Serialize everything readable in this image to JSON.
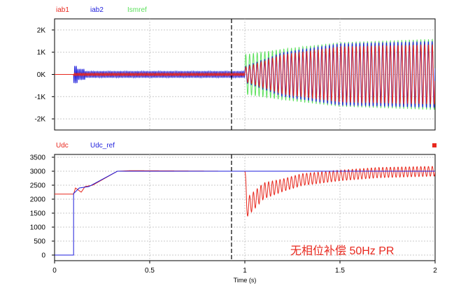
{
  "colors": {
    "red": "#e8281e",
    "blue": "#1e1edc",
    "green": "#5ce05c",
    "grid": "#c8c8c8",
    "axis": "#000000",
    "cursor": "#000000"
  },
  "chart_data": [
    {
      "type": "line",
      "legend": [
        "iab1",
        "iab2",
        "Ismref"
      ],
      "series": [
        {
          "name": "iab1",
          "color": "red",
          "description": "small oscillation near 0 until t=1, then oscillating with growing amplitude"
        },
        {
          "name": "iab2",
          "color": "blue",
          "amplitude_before_1s": 150,
          "envelope_after_1s": [
            [
              1.0,
              350
            ],
            [
              1.2,
              1000
            ],
            [
              1.5,
              1400
            ],
            [
              2.0,
              1500
            ]
          ]
        },
        {
          "name": "Ismref",
          "color": "green",
          "envelope_after_1s": [
            [
              1.0,
              900
            ],
            [
              1.2,
              1150
            ],
            [
              1.5,
              1450
            ],
            [
              2.0,
              1600
            ]
          ]
        }
      ],
      "xlim": [
        0,
        2
      ],
      "ylim": [
        -2500,
        2500
      ],
      "yticks": [
        2000,
        1000,
        0,
        -1000,
        -2000
      ],
      "ytick_labels": [
        "2K",
        "1K",
        "0K",
        "-1K",
        "-2K"
      ],
      "cursor_x": 0.93,
      "grid": true
    },
    {
      "type": "line",
      "legend": [
        "Udc",
        "Udc_ref"
      ],
      "series": [
        {
          "name": "Udc",
          "color": "red",
          "points": [
            [
              0,
              2180
            ],
            [
              0.1,
              2180
            ],
            [
              0.11,
              2400
            ],
            [
              0.14,
              2250
            ],
            [
              0.16,
              2450
            ],
            [
              0.2,
              2500
            ],
            [
              0.33,
              3000
            ],
            [
              0.4,
              3020
            ],
            [
              0.9,
              3000
            ],
            [
              1.0,
              3000
            ],
            [
              1.01,
              1700
            ],
            [
              1.1,
              2300
            ],
            [
              1.3,
              2700
            ],
            [
              1.5,
              2850
            ],
            [
              1.7,
              2950
            ],
            [
              2.0,
              3000
            ]
          ],
          "oscillation_after_1s": [
            [
              1.0,
              700
            ],
            [
              1.2,
              450
            ],
            [
              1.5,
              380
            ],
            [
              2.0,
              350
            ]
          ]
        },
        {
          "name": "Udc_ref",
          "color": "blue",
          "points": [
            [
              0,
              0
            ],
            [
              0.1,
              0
            ],
            [
              0.1,
              2200
            ],
            [
              0.13,
              2400
            ],
            [
              0.18,
              2450
            ],
            [
              0.33,
              3000
            ],
            [
              2.0,
              3000
            ]
          ]
        }
      ],
      "xlim": [
        0,
        2
      ],
      "ylim": [
        -200,
        3600
      ],
      "yticks": [
        3500,
        3000,
        2500,
        2000,
        1500,
        1000,
        500,
        0
      ],
      "xticks": [
        0,
        0.5,
        1,
        1.5,
        2
      ],
      "xlabel": "Time (s)",
      "cursor_x": 0.93,
      "grid": true
    }
  ],
  "annotation": "无相位补偿 50Hz PR"
}
